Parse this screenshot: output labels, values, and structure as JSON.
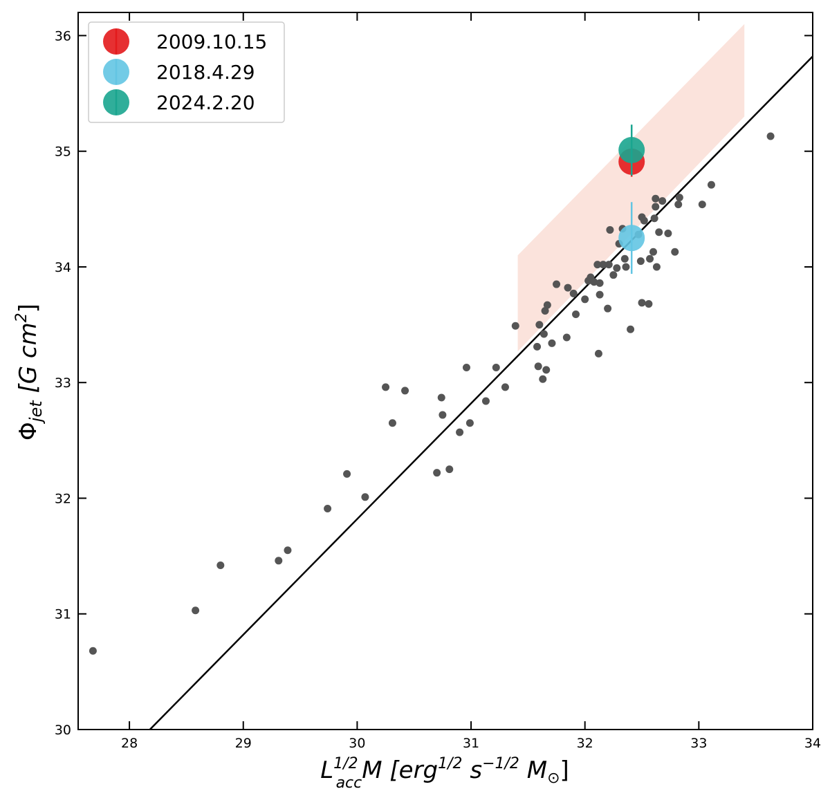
{
  "chart_data": {
    "type": "scatter",
    "xlabel": {
      "base": "L",
      "sup": "1/2",
      "sub": "acc",
      "rest": "M [erg",
      "unit1_sup": "1/2",
      "unit2": " s",
      "unit2_sup": "−1/2",
      "unit3": " M",
      "unit3_sub": "⊙",
      "close": "]"
    },
    "ylabel": {
      "phi": "Φ",
      "sub": "jet",
      "rest": " [G cm",
      "sup": "2",
      "close": "]"
    },
    "xlim": [
      27.55,
      34.0
    ],
    "ylim": [
      30.0,
      36.2
    ],
    "xticks": [
      "28",
      "29",
      "30",
      "31",
      "32",
      "33",
      "34"
    ],
    "yticks": [
      "30",
      "31",
      "32",
      "33",
      "34",
      "35",
      "36"
    ],
    "legend_position": "top-left",
    "grid": false,
    "fit_line": {
      "x": [
        28.18,
        34.0
      ],
      "y": [
        30.0,
        35.82
      ],
      "color": "#000000"
    },
    "shaded_region": {
      "color": "#fbe3dc",
      "polygon": [
        [
          31.41,
          34.1
        ],
        [
          33.4,
          36.1
        ],
        [
          33.4,
          35.3
        ],
        [
          31.41,
          33.27
        ]
      ]
    },
    "scatter_color": "#555555",
    "background_points": [
      [
        27.68,
        30.68
      ],
      [
        28.58,
        31.03
      ],
      [
        28.8,
        31.42
      ],
      [
        29.31,
        31.46
      ],
      [
        29.39,
        31.55
      ],
      [
        29.74,
        31.91
      ],
      [
        29.91,
        32.21
      ],
      [
        30.07,
        32.01
      ],
      [
        30.25,
        32.96
      ],
      [
        30.31,
        32.65
      ],
      [
        30.42,
        32.93
      ],
      [
        30.7,
        32.22
      ],
      [
        30.74,
        32.87
      ],
      [
        30.75,
        32.72
      ],
      [
        30.81,
        32.25
      ],
      [
        30.9,
        32.57
      ],
      [
        30.96,
        33.13
      ],
      [
        30.99,
        32.65
      ],
      [
        31.13,
        32.84
      ],
      [
        31.22,
        33.13
      ],
      [
        31.3,
        32.96
      ],
      [
        31.39,
        33.49
      ],
      [
        31.58,
        33.31
      ],
      [
        31.59,
        33.14
      ],
      [
        31.6,
        33.5
      ],
      [
        31.63,
        33.03
      ],
      [
        31.64,
        33.42
      ],
      [
        31.65,
        33.62
      ],
      [
        31.66,
        33.11
      ],
      [
        31.67,
        33.67
      ],
      [
        31.71,
        33.34
      ],
      [
        31.75,
        33.85
      ],
      [
        31.84,
        33.39
      ],
      [
        31.85,
        33.82
      ],
      [
        31.9,
        33.77
      ],
      [
        31.92,
        33.59
      ],
      [
        32.0,
        33.72
      ],
      [
        32.03,
        33.88
      ],
      [
        32.05,
        33.91
      ],
      [
        32.08,
        33.87
      ],
      [
        32.11,
        34.02
      ],
      [
        32.12,
        33.25
      ],
      [
        32.13,
        33.76
      ],
      [
        32.13,
        33.86
      ],
      [
        32.16,
        34.02
      ],
      [
        32.2,
        33.64
      ],
      [
        32.21,
        34.02
      ],
      [
        32.22,
        34.32
      ],
      [
        32.25,
        33.93
      ],
      [
        32.28,
        33.99
      ],
      [
        32.3,
        34.2
      ],
      [
        32.33,
        34.33
      ],
      [
        32.35,
        34.07
      ],
      [
        32.36,
        34.0
      ],
      [
        32.4,
        33.46
      ],
      [
        32.47,
        34.28
      ],
      [
        32.49,
        34.05
      ],
      [
        32.5,
        33.69
      ],
      [
        32.5,
        34.43
      ],
      [
        32.52,
        34.4
      ],
      [
        32.56,
        33.68
      ],
      [
        32.57,
        34.07
      ],
      [
        32.6,
        34.13
      ],
      [
        32.61,
        34.42
      ],
      [
        32.62,
        34.52
      ],
      [
        32.62,
        34.59
      ],
      [
        32.63,
        34.0
      ],
      [
        32.65,
        34.3
      ],
      [
        32.68,
        34.57
      ],
      [
        32.73,
        34.29
      ],
      [
        32.79,
        34.13
      ],
      [
        32.82,
        34.54
      ],
      [
        32.83,
        34.6
      ],
      [
        33.03,
        34.54
      ],
      [
        33.11,
        34.71
      ],
      [
        33.63,
        35.13
      ]
    ],
    "series": [
      {
        "name": "2009.10.15",
        "color": "#e31a1c",
        "x": 32.41,
        "y": 34.91,
        "yerr": [
          0.13,
          0.13
        ]
      },
      {
        "name": "2018.4.29",
        "color": "#63c5e3",
        "x": 32.41,
        "y": 34.25,
        "yerr": [
          0.31,
          0.31
        ]
      },
      {
        "name": "2024.2.20",
        "color": "#1aa58f",
        "x": 32.41,
        "y": 35.01,
        "yerr": [
          0.22,
          0.22
        ]
      }
    ]
  }
}
